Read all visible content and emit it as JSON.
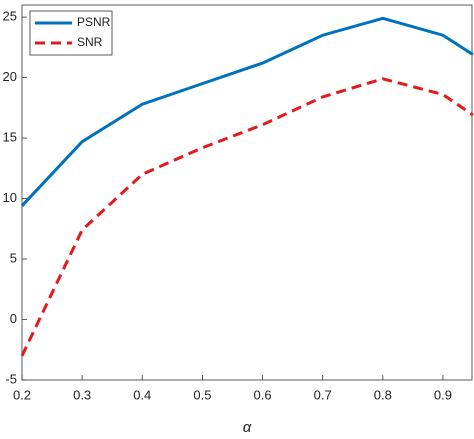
{
  "chart_data": {
    "type": "line",
    "xlabel": "α",
    "x": [
      0.2,
      0.3,
      0.4,
      0.5,
      0.6,
      0.7,
      0.8,
      0.9,
      0.95
    ],
    "series": [
      {
        "name": "PSNR",
        "color": "#0072bd",
        "linestyle": "solid",
        "values": [
          9.4,
          14.7,
          17.8,
          19.5,
          21.2,
          23.5,
          24.9,
          23.5,
          21.9
        ]
      },
      {
        "name": "SNR",
        "color": "#e3191c",
        "linestyle": "dashed",
        "values": [
          -3.0,
          7.4,
          12.0,
          14.2,
          16.1,
          18.4,
          19.9,
          18.6,
          16.9
        ]
      }
    ],
    "xlim": [
      0.2,
      0.95
    ],
    "xticks": [
      0.2,
      0.3,
      0.4,
      0.5,
      0.6,
      0.7,
      0.8,
      0.9
    ],
    "ylim": [
      -5,
      26
    ],
    "yticks": [
      -5,
      0,
      5,
      10,
      15,
      20,
      25
    ],
    "grid": false,
    "legend": "upper left"
  }
}
